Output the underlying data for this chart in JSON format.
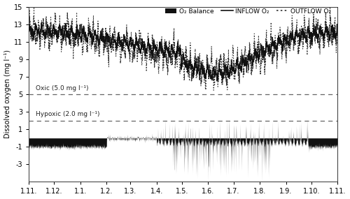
{
  "ylim": [
    -5,
    15
  ],
  "yticks": [
    -3,
    -1,
    1,
    3,
    5,
    7,
    9,
    11,
    13,
    15
  ],
  "oxic_level": 5.0,
  "hypoxic_level": 2.0,
  "oxic_label": "Oxic (5.0 mg l⁻¹)",
  "hypoxic_label": "Hypoxic (2.0 mg l⁻¹)",
  "ylabel": "Dissolved oxygen (mg l⁻¹)",
  "xtick_labels": [
    "1.11.",
    "1.12.",
    "1.1.",
    "1.2.",
    "1.3.",
    "1.4.",
    "1.5.",
    "1.6.",
    "1.7.",
    "1.8.",
    "1.9.",
    "1.10.",
    "1.11."
  ],
  "legend_labels": [
    "O₂ Balance",
    "INFLOW O₂",
    "OUTFLOW O₂"
  ],
  "background_color": "#ffffff",
  "line_color_inflow": "#111111",
  "line_color_outflow": "#333333",
  "bar_color": "#111111",
  "ref_line_color": "#666666"
}
